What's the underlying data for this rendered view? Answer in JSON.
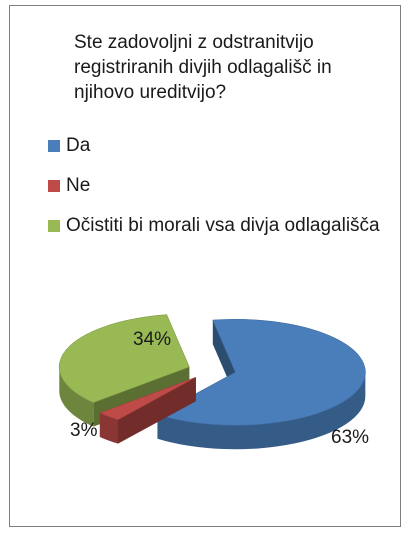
{
  "chart_data": {
    "type": "pie",
    "title": "Ste zadovoljni z odstranitvijo\nregistriranih divjih odlagališč in\nnjihovo ureditvijo?",
    "categories": [
      "Da",
      "Ne",
      "Očistiti bi morali vsa divja odlagališča"
    ],
    "values": [
      63,
      3,
      34
    ],
    "data_labels": [
      "63%",
      "3%",
      "34%"
    ],
    "colors": [
      "#4a7ebb",
      "#be4b48",
      "#98b954"
    ],
    "legend_position": "top-left",
    "style": "3d-exploded"
  }
}
